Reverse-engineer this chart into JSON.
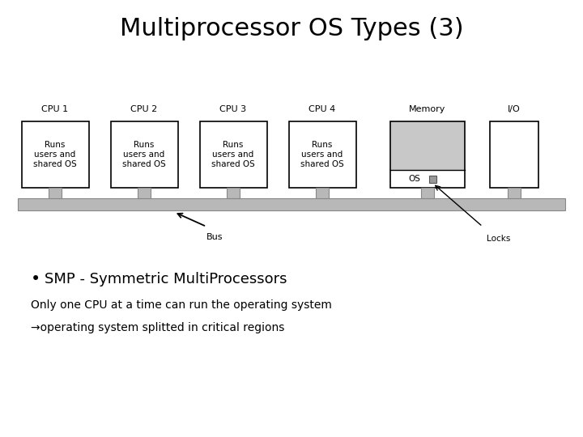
{
  "title": "Multiprocessor OS Types (3)",
  "title_fontsize": 22,
  "background_color": "#ffffff",
  "cpus": [
    "CPU 1",
    "CPU 2",
    "CPU 3",
    "CPU 4"
  ],
  "cpu_label_text": "Runs\nusers and\nshared OS",
  "memory_label": "Memory",
  "io_label": "I/O",
  "bus_label": "Bus",
  "locks_label": "Locks",
  "os_label": "OS",
  "bullet_text": "SMP - Symmetric MultiProcessors",
  "line2": "Only one CPU at a time can run the operating system",
  "line3": "→operating system splitted in critical regions",
  "box_color": "#ffffff",
  "box_edge": "#000000",
  "memory_fill_top": "#c8c8c8",
  "memory_fill_bottom": "#ffffff",
  "bus_color": "#b8b8b8",
  "bus_edge": "#888888",
  "leg_color": "#b8b8b8",
  "leg_edge": "#888888",
  "font_family": "DejaVu Sans",
  "label_fontsize": 7.5,
  "cpu_name_fontsize": 8,
  "bullet_fontsize": 13,
  "body_fontsize": 10
}
